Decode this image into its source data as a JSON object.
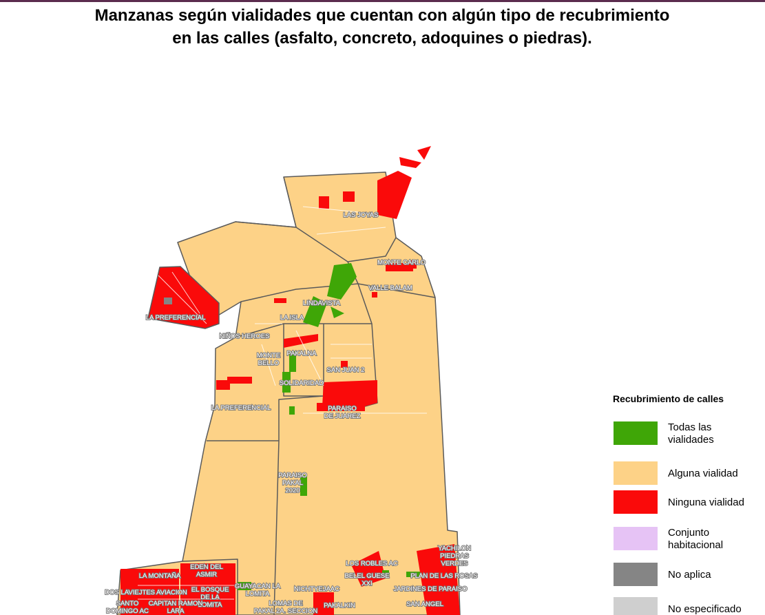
{
  "header": {
    "title_lines": [
      "Manzanas según vialidades que cuentan con algún tipo de recubrimiento",
      "en las calles (asfalto, concreto, adoquines o piedras)."
    ]
  },
  "legend": {
    "title": "Recubrimiento de calles",
    "items": [
      {
        "lines": [
          "Todas las",
          "vialidades"
        ],
        "color": "#3fa607"
      },
      {
        "lines": [
          "Alguna vialidad"
        ],
        "color": "#fdd287"
      },
      {
        "lines": [
          "Ninguna vialidad"
        ],
        "color": "#fa0a0a"
      },
      {
        "lines": [
          "Conjunto",
          "habitacional"
        ],
        "color": "#e6c3f5"
      },
      {
        "lines": [
          "No aplica"
        ],
        "color": "#858585"
      },
      {
        "lines": [
          "No especificado"
        ],
        "color": "#cfcfcf"
      }
    ]
  },
  "places": [
    {
      "lines": [
        "LAS JOYAS"
      ]
    },
    {
      "lines": [
        "MONTE CARLO"
      ]
    },
    {
      "lines": [
        "VALLE BALAM"
      ]
    },
    {
      "lines": [
        "LINDAVISTA"
      ]
    },
    {
      "lines": [
        "LA ISLA"
      ]
    },
    {
      "lines": [
        "LA PREFERENCIAL"
      ]
    },
    {
      "lines": [
        "NIÑOS HEROES"
      ]
    },
    {
      "lines": [
        "MONTE",
        "BELLO"
      ]
    },
    {
      "lines": [
        "PAKALNA"
      ]
    },
    {
      "lines": [
        "SAN JUAN 2"
      ]
    },
    {
      "lines": [
        "SOLIDARIDAD"
      ]
    },
    {
      "lines": [
        "LA PREFERENCIAL"
      ]
    },
    {
      "lines": [
        "PARAISO",
        "DE JUAREZ"
      ]
    },
    {
      "lines": [
        "PARAISO",
        "PAKAL",
        "2020"
      ]
    },
    {
      "lines": [
        "YACHILON",
        "PIEDRAS",
        "VERDES"
      ]
    },
    {
      "lines": [
        "LOS ROBLES AC"
      ]
    },
    {
      "lines": [
        "BELEL GUESE",
        "XXI"
      ]
    },
    {
      "lines": [
        "PLAN DE LAS ROSAS"
      ]
    },
    {
      "lines": [
        "LA MONTAÑA"
      ]
    },
    {
      "lines": [
        "EDEN DEL",
        "ASMIR"
      ]
    },
    {
      "lines": [
        "DOS LAVIEJTES AVIACION"
      ]
    },
    {
      "lines": [
        "EL BOSQUE",
        "DE LA",
        "LOMITA"
      ]
    },
    {
      "lines": [
        "GUAYACAN LA",
        "LOMITA"
      ]
    },
    {
      "lines": [
        "NICHTYEJAAC"
      ]
    },
    {
      "lines": [
        "JARDINES DE PARAISO"
      ]
    },
    {
      "lines": [
        "SANTO",
        "DOMINGO AC"
      ]
    },
    {
      "lines": [
        "CAPITAN RAMON",
        "LARA"
      ]
    },
    {
      "lines": [
        "LOMAS DE",
        "PAKAL 2A. SECCION"
      ]
    },
    {
      "lines": [
        "PAKALKIN"
      ]
    },
    {
      "lines": [
        "SAN ANGEL"
      ]
    }
  ]
}
